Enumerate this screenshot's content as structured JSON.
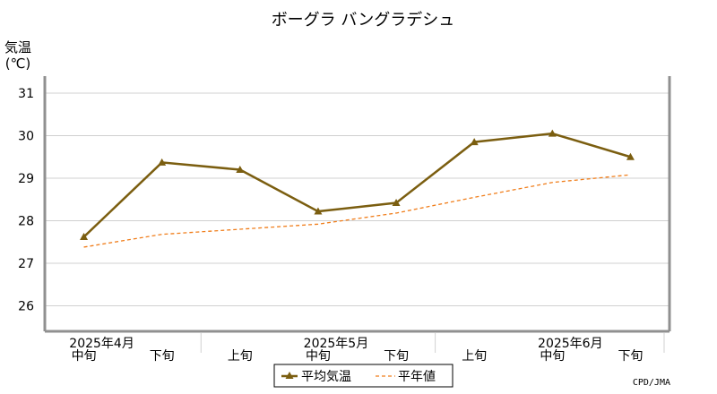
{
  "chart_data": {
    "type": "line",
    "title": "ボーグラ バングラデシュ",
    "ylabel_line1": "気温",
    "ylabel_line2": "(℃)",
    "ylim": [
      25.4,
      31.4
    ],
    "yticks": [
      26,
      27,
      28,
      29,
      30,
      31
    ],
    "grid": true,
    "x_labels": [
      "中旬",
      "下旬",
      "上旬",
      "中旬",
      "下旬",
      "上旬",
      "中旬",
      "下旬"
    ],
    "month_labels": [
      {
        "label": "2025年4月",
        "index": 0
      },
      {
        "label": "2025年5月",
        "index": 3
      },
      {
        "label": "2025年6月",
        "index": 6
      }
    ],
    "series": [
      {
        "name": "平均気温",
        "color": "#7b5e10",
        "style": "solid",
        "marker": "triangle",
        "values": [
          27.62,
          29.37,
          29.2,
          28.22,
          28.42,
          29.85,
          30.05,
          29.5
        ]
      },
      {
        "name": "平年値",
        "color": "#f07d1a",
        "style": "dashed",
        "marker": "none",
        "values": [
          27.38,
          27.68,
          27.8,
          27.92,
          28.18,
          28.55,
          28.9,
          29.08
        ]
      }
    ],
    "legend_position": "bottom-center",
    "credit": "CPD/JMA"
  }
}
